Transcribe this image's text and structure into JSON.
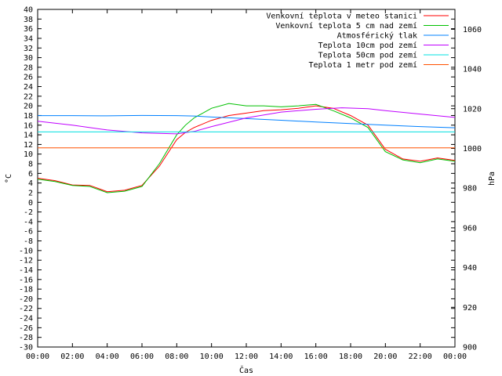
{
  "chart_data": {
    "type": "line",
    "title": "",
    "xlabel": "Čas",
    "ylabel": "°C",
    "y2label": "hPa",
    "x_ticks": [
      "00:00",
      "02:00",
      "04:00",
      "06:00",
      "08:00",
      "10:00",
      "12:00",
      "14:00",
      "16:00",
      "18:00",
      "20:00",
      "22:00",
      "00:00"
    ],
    "ylim": [
      -30,
      40
    ],
    "y_ticks": [
      40,
      38,
      36,
      34,
      32,
      30,
      28,
      26,
      24,
      22,
      20,
      18,
      16,
      14,
      12,
      10,
      8,
      6,
      4,
      2,
      0,
      -2,
      -4,
      -6,
      -8,
      -10,
      -12,
      -14,
      -16,
      -18,
      -20,
      -22,
      -24,
      -26,
      -28,
      -30
    ],
    "y2lim": [
      900,
      1070
    ],
    "y2_ticks": [
      1060,
      1040,
      1020,
      1000,
      980,
      960,
      940,
      920,
      900
    ],
    "legend_position": "top-right",
    "grid": false,
    "series": [
      {
        "name": "Venkovní teplota v meteo stanici",
        "color": "#ff0000",
        "axis": "left",
        "x": [
          0,
          1,
          2,
          3,
          4,
          5,
          6,
          7,
          8,
          8.5,
          9,
          10,
          11,
          12,
          13,
          14,
          15,
          16,
          17,
          18,
          19,
          20,
          21,
          22,
          23,
          24
        ],
        "y": [
          5.0,
          4.5,
          3.6,
          3.5,
          2.2,
          2.5,
          3.5,
          7.5,
          13.0,
          14.5,
          15.5,
          17.0,
          18.0,
          18.5,
          19.0,
          19.2,
          19.5,
          20.0,
          19.5,
          18.0,
          16.0,
          11.0,
          9.0,
          8.5,
          9.2,
          8.7
        ]
      },
      {
        "name": "Venkovní teplota 5 cm nad zemí",
        "color": "#00c000",
        "axis": "left",
        "x": [
          0,
          1,
          2,
          3,
          4,
          5,
          6,
          7,
          8,
          8.5,
          9,
          10,
          11,
          12,
          13,
          14,
          15,
          16,
          17,
          18,
          19,
          20,
          21,
          22,
          23,
          24
        ],
        "y": [
          4.8,
          4.3,
          3.5,
          3.3,
          2.0,
          2.3,
          3.3,
          8.0,
          14.0,
          16.0,
          17.5,
          19.5,
          20.5,
          20.0,
          20.0,
          19.8,
          20.0,
          20.3,
          19.0,
          17.5,
          15.5,
          10.5,
          8.8,
          8.2,
          9.0,
          8.5
        ]
      },
      {
        "name": "Atmosférický tlak",
        "color": "#0080ff",
        "axis": "right",
        "x": [
          0,
          2,
          4,
          6,
          8,
          9,
          10,
          12,
          14,
          16,
          18,
          20,
          22,
          24
        ],
        "y": [
          1016.5,
          1016.5,
          1016.4,
          1016.6,
          1016.5,
          1016.3,
          1015.8,
          1015.0,
          1014.2,
          1013.3,
          1012.5,
          1011.7,
          1011.0,
          1010.4
        ]
      },
      {
        "name": "Teplota 10cm pod zemí",
        "color": "#c000ff",
        "axis": "left",
        "x": [
          0,
          2,
          4,
          6,
          8,
          9,
          10,
          12,
          14,
          16,
          17.5,
          19,
          20,
          22,
          24
        ],
        "y": [
          16.8,
          16.0,
          15.0,
          14.4,
          14.2,
          14.7,
          15.7,
          17.5,
          18.7,
          19.3,
          19.6,
          19.4,
          19.0,
          18.3,
          17.6
        ]
      },
      {
        "name": "Teplota 50cm pod zemí",
        "color": "#00e0e0",
        "axis": "left",
        "x": [
          0,
          24
        ],
        "y": [
          14.6,
          14.6
        ]
      },
      {
        "name": "Teplota 1 metr pod zemí",
        "color": "#ff5000",
        "axis": "left",
        "x": [
          0,
          24
        ],
        "y": [
          11.3,
          11.3
        ]
      }
    ]
  }
}
